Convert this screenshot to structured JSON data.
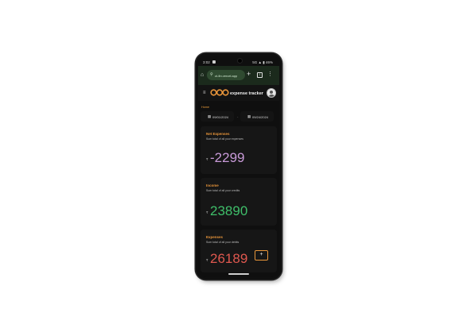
{
  "status_bar": {
    "time": "3:02",
    "indicators": "5G ▲ ▮ 46%"
  },
  "browser": {
    "url": "ct-fin.vercel.app",
    "new_tab": "+",
    "tabs_count": "1",
    "menu": "⋮"
  },
  "app": {
    "title": "expense tracker"
  },
  "page": {
    "home_label": "Home",
    "date_from": "09/01/2024",
    "date_to": "09/24/2024",
    "date_sep": "-"
  },
  "cards": [
    {
      "title": "Net Expenses",
      "subtitle": "Sum total of all your expenses",
      "currency": "₹",
      "value": "-2299",
      "color": "#c89ad8"
    },
    {
      "title": "Income",
      "subtitle": "Sum total of all your credits",
      "currency": "₹",
      "value": "23890",
      "color": "#3fbf6a"
    },
    {
      "title": "Expenses",
      "subtitle": "Sum total of all your debits",
      "currency": "₹",
      "value": "26189",
      "color": "#e0584f"
    }
  ],
  "add_button": {
    "label": "+"
  },
  "colors": {
    "accent": "#e8953a",
    "background": "#0f0f0f",
    "browser_bar": "#1b2a1c"
  }
}
